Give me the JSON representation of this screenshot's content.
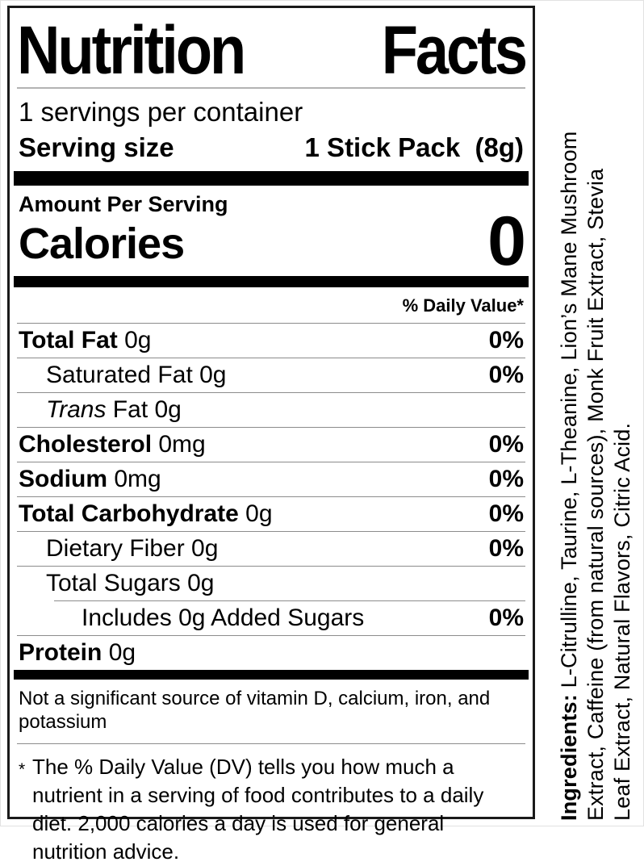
{
  "nutrition": {
    "title": {
      "word1": "Nutrition",
      "word2": "Facts"
    },
    "servings_per_container": "1 servings per container",
    "serving_size_label": "Serving size",
    "serving_size_value": "1 Stick Pack  (8g)",
    "amount_per_serving": "Amount Per Serving",
    "calories_label": "Calories",
    "calories_value": "0",
    "daily_value_header": "% Daily Value*",
    "rows": [
      {
        "bold": "Total Fat",
        "rest": " 0g",
        "dv": "0%"
      },
      {
        "bold": "",
        "rest": "Saturated Fat 0g",
        "dv": "0%"
      },
      {
        "italic": "Trans",
        "rest": " Fat 0g",
        "dv": ""
      },
      {
        "bold": "Cholesterol",
        "rest": " 0mg",
        "dv": "0%"
      },
      {
        "bold": "Sodium",
        "rest": " 0mg",
        "dv": "0%"
      },
      {
        "bold": "Total Carbohydrate",
        "rest": " 0g",
        "dv": "0%"
      },
      {
        "bold": "",
        "rest": "Dietary Fiber 0g",
        "dv": "0%"
      },
      {
        "bold": "",
        "rest": "Total Sugars 0g",
        "dv": ""
      },
      {
        "bold": "",
        "rest": "Includes 0g Added Sugars",
        "dv": "0%"
      },
      {
        "bold": "Protein",
        "rest": " 0g",
        "dv": ""
      }
    ],
    "not_significant": "Not a significant source of vitamin D, calcium, iron, and potassium",
    "footnote_marker": "*",
    "footnote_text": "The % Daily Value (DV) tells you how much a nutrient in a serving of food contributes to a daily diet. 2,000 calories a day is used for general nutrition advice."
  },
  "ingredients": {
    "label": "Ingredients:",
    "line1_rest": " L-Citrulline, Taurine, L-Theanine, Lion’s Mane Mushroom",
    "line2": "Extract, Caffeine (from natural sources), Monk Fruit Extract, Stevia",
    "line3": "Leaf Extract, Natural Flavors, Citric Acid."
  },
  "colors": {
    "text": "#000000",
    "bars": "#000000",
    "hairline": "#8c8c8c",
    "title_underline": "#b3b3b3"
  }
}
